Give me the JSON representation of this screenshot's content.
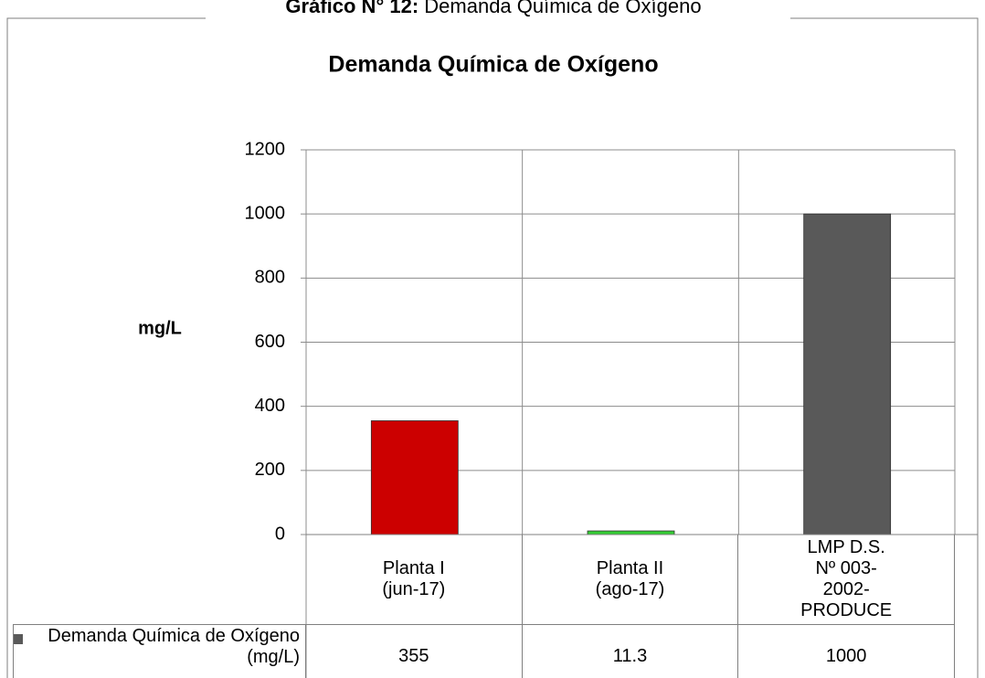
{
  "chart_data": {
    "type": "bar",
    "heading": {
      "label": "Gráfico N° 12:",
      "text": "Demanda Química de Oxígeno"
    },
    "title": "Demanda Química de Oxígeno",
    "y_label": "mg/L",
    "categories": [
      "Planta I (jun-17)",
      "Planta II (ago-17)",
      "LMP D.S. Nº 003-2002-PRODUCE"
    ],
    "series": [
      {
        "name": "Demanda Química de Oxígeno (mg/L)",
        "color": "#595959",
        "point_colors": [
          "#cc0000",
          "#33cc33",
          "#595959"
        ],
        "values": [
          355,
          11.3,
          1000
        ]
      }
    ],
    "ylim": [
      0,
      1200
    ],
    "yticks": [
      0,
      200,
      400,
      600,
      800,
      1000,
      1200
    ],
    "grid": true,
    "data_table": true
  }
}
